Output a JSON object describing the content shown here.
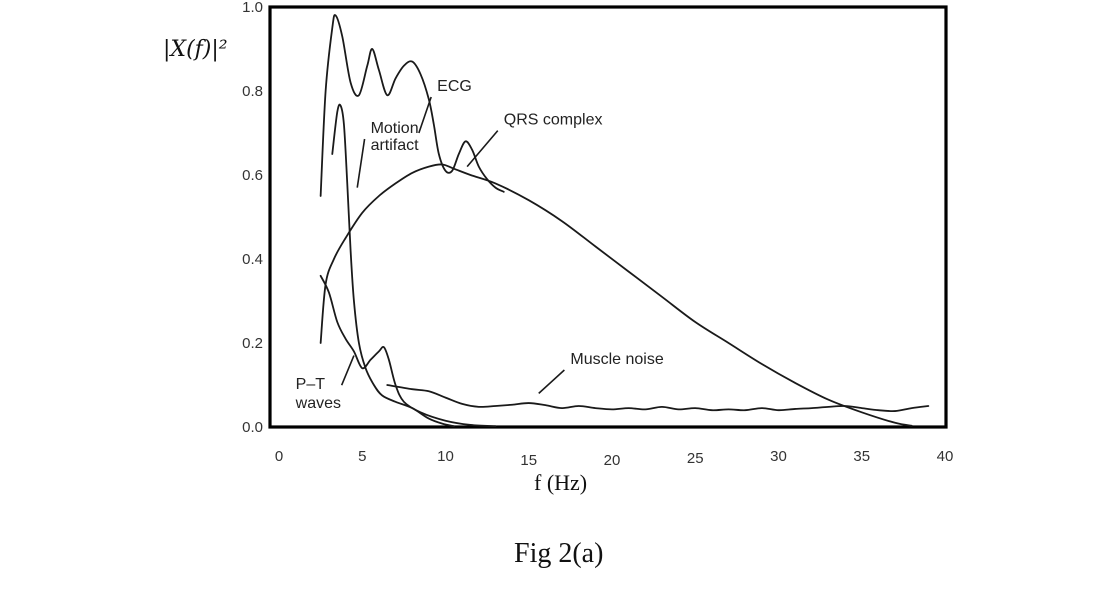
{
  "chart_data": {
    "type": "line",
    "title": "",
    "ylabel": "|X(f)|²",
    "xlabel": "f (Hz)",
    "xlim": [
      0,
      40
    ],
    "ylim": [
      0,
      1.0
    ],
    "x_ticks": [
      "0",
      "5",
      "10",
      "15",
      "20",
      "25",
      "30",
      "35",
      "40"
    ],
    "y_ticks": [
      "0.0",
      "0.2",
      "0.4",
      "0.6",
      "0.8",
      "1.0"
    ],
    "grid": false,
    "series": [
      {
        "name": "ECG",
        "points": [
          [
            2.5,
            0.55
          ],
          [
            2.8,
            0.8
          ],
          [
            3.2,
            0.95
          ],
          [
            3.4,
            0.98
          ],
          [
            3.8,
            0.93
          ],
          [
            4.3,
            0.82
          ],
          [
            4.8,
            0.79
          ],
          [
            5.3,
            0.86
          ],
          [
            5.6,
            0.9
          ],
          [
            6.0,
            0.85
          ],
          [
            6.5,
            0.79
          ],
          [
            7.0,
            0.83
          ],
          [
            7.5,
            0.86
          ],
          [
            8.0,
            0.87
          ],
          [
            8.5,
            0.84
          ],
          [
            9.0,
            0.78
          ],
          [
            9.3,
            0.72
          ],
          [
            9.6,
            0.65
          ],
          [
            10.0,
            0.61
          ],
          [
            10.4,
            0.61
          ],
          [
            10.8,
            0.65
          ],
          [
            11.2,
            0.68
          ],
          [
            11.6,
            0.66
          ],
          [
            12.0,
            0.62
          ],
          [
            12.5,
            0.59
          ],
          [
            13.0,
            0.57
          ],
          [
            13.5,
            0.56
          ]
        ]
      },
      {
        "name": "QRS complex",
        "points": [
          [
            2.5,
            0.2
          ],
          [
            2.8,
            0.34
          ],
          [
            3.3,
            0.4
          ],
          [
            4.0,
            0.45
          ],
          [
            5.0,
            0.51
          ],
          [
            6.0,
            0.55
          ],
          [
            7.0,
            0.58
          ],
          [
            8.0,
            0.605
          ],
          [
            9.0,
            0.62
          ],
          [
            9.8,
            0.625
          ],
          [
            10.5,
            0.615
          ],
          [
            11.5,
            0.6
          ],
          [
            13.0,
            0.58
          ],
          [
            15.0,
            0.54
          ],
          [
            17.0,
            0.49
          ],
          [
            19.0,
            0.43
          ],
          [
            21.0,
            0.37
          ],
          [
            23.0,
            0.31
          ],
          [
            25.0,
            0.25
          ],
          [
            27.0,
            0.2
          ],
          [
            29.0,
            0.15
          ],
          [
            31.0,
            0.105
          ],
          [
            33.0,
            0.065
          ],
          [
            35.0,
            0.035
          ],
          [
            37.0,
            0.01
          ],
          [
            38.0,
            0.003
          ]
        ]
      },
      {
        "name": "Motion artifact",
        "points": [
          [
            3.2,
            0.65
          ],
          [
            3.5,
            0.75
          ],
          [
            3.7,
            0.765
          ],
          [
            3.9,
            0.72
          ],
          [
            4.1,
            0.58
          ],
          [
            4.3,
            0.42
          ],
          [
            4.5,
            0.3
          ],
          [
            4.8,
            0.2
          ],
          [
            5.2,
            0.14
          ],
          [
            5.7,
            0.1
          ],
          [
            6.2,
            0.075
          ],
          [
            7.0,
            0.06
          ],
          [
            8.0,
            0.045
          ],
          [
            9.0,
            0.02
          ],
          [
            9.8,
            0.008
          ],
          [
            10.5,
            0.002
          ]
        ]
      },
      {
        "name": "P-T waves",
        "points": [
          [
            2.5,
            0.36
          ],
          [
            3.0,
            0.32
          ],
          [
            3.5,
            0.25
          ],
          [
            4.0,
            0.21
          ],
          [
            4.5,
            0.18
          ],
          [
            5.0,
            0.14
          ],
          [
            5.5,
            0.16
          ],
          [
            6.0,
            0.18
          ],
          [
            6.3,
            0.19
          ],
          [
            6.6,
            0.16
          ],
          [
            7.0,
            0.1
          ],
          [
            7.5,
            0.06
          ],
          [
            8.5,
            0.035
          ],
          [
            10.0,
            0.015
          ],
          [
            11.5,
            0.005
          ],
          [
            13.0,
            0.002
          ]
        ]
      },
      {
        "name": "Muscle noise",
        "points": [
          [
            6.5,
            0.1
          ],
          [
            8.0,
            0.09
          ],
          [
            9.0,
            0.085
          ],
          [
            10.0,
            0.07
          ],
          [
            11.0,
            0.055
          ],
          [
            12.0,
            0.048
          ],
          [
            13.0,
            0.05
          ],
          [
            14.0,
            0.053
          ],
          [
            15.0,
            0.057
          ],
          [
            16.0,
            0.052
          ],
          [
            17.0,
            0.045
          ],
          [
            18.0,
            0.05
          ],
          [
            19.0,
            0.045
          ],
          [
            20.0,
            0.042
          ],
          [
            21.0,
            0.045
          ],
          [
            22.0,
            0.042
          ],
          [
            23.0,
            0.048
          ],
          [
            24.0,
            0.042
          ],
          [
            25.0,
            0.045
          ],
          [
            26.0,
            0.04
          ],
          [
            27.0,
            0.042
          ],
          [
            28.0,
            0.04
          ],
          [
            29.0,
            0.045
          ],
          [
            30.0,
            0.04
          ],
          [
            31.0,
            0.043
          ],
          [
            32.0,
            0.045
          ],
          [
            33.0,
            0.048
          ],
          [
            34.0,
            0.05
          ],
          [
            35.0,
            0.045
          ],
          [
            36.0,
            0.04
          ],
          [
            37.0,
            0.038
          ],
          [
            38.0,
            0.045
          ],
          [
            39.0,
            0.05
          ]
        ]
      }
    ],
    "annotations": [
      {
        "text": "ECG",
        "series": "ECG",
        "at": [
          9.5,
          0.8
        ],
        "anchor": [
          8.4,
          0.7
        ]
      },
      {
        "text": "QRS complex",
        "series": "QRS complex",
        "at": [
          13.5,
          0.72
        ],
        "anchor": [
          11.3,
          0.62
        ]
      },
      {
        "text": "Motion",
        "series": "Motion artifact",
        "at": [
          5.5,
          0.7
        ],
        "anchor": [
          4.7,
          0.57
        ]
      },
      {
        "text": "artifact",
        "series": "Motion artifact",
        "at": [
          5.5,
          0.66
        ],
        "anchor": null
      },
      {
        "text": "Muscle noise",
        "series": "Muscle noise",
        "at": [
          17.5,
          0.15
        ],
        "anchor": [
          15.6,
          0.08
        ]
      },
      {
        "text": "P–T",
        "series": "P-T waves",
        "at": [
          1.0,
          0.09
        ],
        "anchor": [
          4.5,
          0.17
        ]
      },
      {
        "text": "waves",
        "series": "P-T waves",
        "at": [
          1.0,
          0.045
        ],
        "anchor": null
      }
    ]
  },
  "caption": "Fig 2(a)"
}
